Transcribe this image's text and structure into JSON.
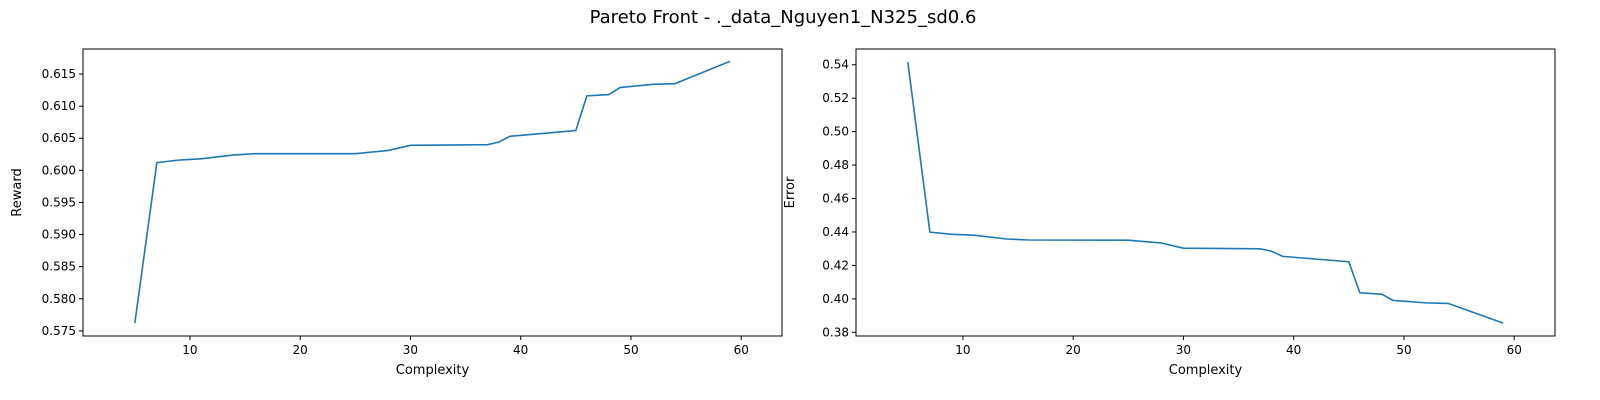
{
  "figure": {
    "title": "Pareto Front - ._data_Nguyen1_N325_sd0.6"
  },
  "colors": {
    "series": "#1f77b4",
    "axes": "#000000",
    "background": "#ffffff"
  },
  "chart_data": [
    {
      "type": "line",
      "title": "",
      "xlabel": "Complexity",
      "ylabel": "Reward",
      "xlim": [
        0.3,
        63.7
      ],
      "ylim": [
        0.5742,
        0.6189
      ],
      "xticks": [
        10,
        20,
        30,
        40,
        50,
        60
      ],
      "yticks": [
        0.575,
        0.58,
        0.585,
        0.59,
        0.595,
        0.6,
        0.605,
        0.61,
        0.615
      ],
      "ytick_decimals": 3,
      "grid": false,
      "legend": "none",
      "series": [
        {
          "x": [
            5,
            7,
            9,
            11,
            14,
            16,
            25,
            28,
            30,
            37,
            38,
            39,
            45,
            46,
            48,
            49,
            52,
            54,
            59
          ],
          "y": [
            0.5762,
            0.6012,
            0.6016,
            0.6018,
            0.6024,
            0.6026,
            0.6026,
            0.6031,
            0.6039,
            0.604,
            0.6044,
            0.6053,
            0.6062,
            0.6116,
            0.6118,
            0.6129,
            0.6134,
            0.6135,
            0.617
          ]
        }
      ]
    },
    {
      "type": "line",
      "title": "",
      "xlabel": "Complexity",
      "ylabel": "Error",
      "xlim": [
        0.3,
        63.7
      ],
      "ylim": [
        0.3778,
        0.5494
      ],
      "xticks": [
        10,
        20,
        30,
        40,
        50,
        60
      ],
      "yticks": [
        0.38,
        0.4,
        0.42,
        0.44,
        0.46,
        0.48,
        0.5,
        0.52,
        0.54
      ],
      "ytick_decimals": 2,
      "grid": false,
      "legend": "none",
      "series": [
        {
          "x": [
            5,
            7,
            9,
            11,
            14,
            16,
            25,
            28,
            30,
            37,
            38,
            39,
            45,
            46,
            48,
            49,
            52,
            54,
            59
          ],
          "y": [
            0.5416,
            0.4399,
            0.4386,
            0.4381,
            0.4358,
            0.4352,
            0.4351,
            0.4334,
            0.4303,
            0.4299,
            0.4285,
            0.4254,
            0.4222,
            0.4036,
            0.4028,
            0.3991,
            0.3976,
            0.3973,
            0.3855
          ]
        }
      ]
    }
  ]
}
